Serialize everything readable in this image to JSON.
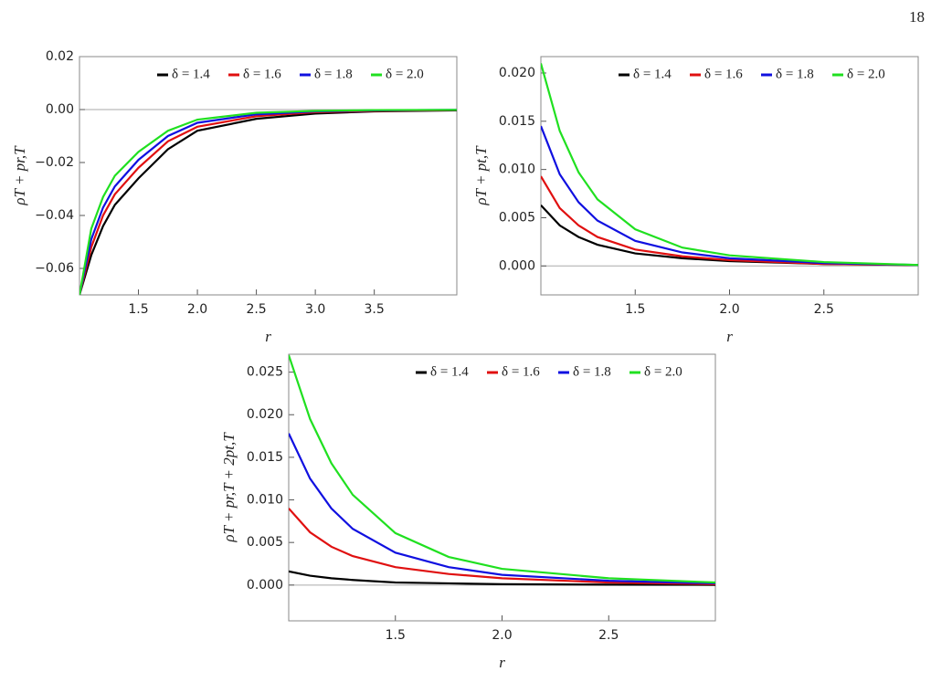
{
  "page_number": "18",
  "chart_data": [
    {
      "type": "line",
      "xlabel": "r",
      "ylabel": "ρT + pr,T",
      "legend": "top-right",
      "x": [
        1.0,
        1.1,
        1.2,
        1.3,
        1.5,
        1.75,
        2.0,
        2.5,
        3.0,
        3.5,
        4.2
      ],
      "xlim": [
        1.0,
        4.2
      ],
      "ylim": [
        -0.07,
        0.02
      ],
      "xticks": [
        {
          "value": 1.5,
          "label": "1.5"
        },
        {
          "value": 2.0,
          "label": "2.0"
        },
        {
          "value": 2.5,
          "label": "2.5"
        },
        {
          "value": 3.0,
          "label": "3.0"
        },
        {
          "value": 3.5,
          "label": "3.5"
        }
      ],
      "yticks": [
        {
          "value": -0.06,
          "label": "−0.06"
        },
        {
          "value": -0.04,
          "label": "−0.04"
        },
        {
          "value": -0.02,
          "label": "−0.02"
        },
        {
          "value": 0,
          "label": "0.00"
        },
        {
          "value": 0.02,
          "label": "0.02"
        }
      ],
      "series": [
        {
          "name": "δ = 1.4",
          "color": "#000000",
          "values": [
            -0.07,
            -0.055,
            -0.044,
            -0.036,
            -0.026,
            -0.015,
            -0.008,
            -0.0035,
            -0.0015,
            -0.0007,
            -0.0003
          ]
        },
        {
          "name": "δ = 1.6",
          "color": "#e01010",
          "values": [
            -0.07,
            -0.052,
            -0.04,
            -0.032,
            -0.022,
            -0.012,
            -0.0065,
            -0.0025,
            -0.001,
            -0.0005,
            -0.0002
          ]
        },
        {
          "name": "δ = 1.8",
          "color": "#1010e0",
          "values": [
            -0.07,
            -0.049,
            -0.037,
            -0.029,
            -0.019,
            -0.01,
            -0.005,
            -0.0018,
            -0.0007,
            -0.0003,
            -0.0001
          ]
        },
        {
          "name": "δ = 2.0",
          "color": "#20e020",
          "values": [
            -0.07,
            -0.045,
            -0.033,
            -0.025,
            -0.016,
            -0.008,
            -0.0038,
            -0.0012,
            -0.0005,
            -0.0002,
            -0.0001
          ]
        }
      ]
    },
    {
      "type": "line",
      "xlabel": "r",
      "ylabel": "ρT + pt,T",
      "legend": "top-right",
      "x": [
        1.0,
        1.1,
        1.2,
        1.3,
        1.5,
        1.75,
        2.0,
        2.5,
        3.0
      ],
      "xlim": [
        1.0,
        3.0
      ],
      "ylim": [
        -0.003,
        0.0217
      ],
      "xticks": [
        {
          "value": 1.5,
          "label": "1.5"
        },
        {
          "value": 2.0,
          "label": "2.0"
        },
        {
          "value": 2.5,
          "label": "2.5"
        }
      ],
      "yticks": [
        {
          "value": 0,
          "label": "0.000"
        },
        {
          "value": 0.005,
          "label": "0.005"
        },
        {
          "value": 0.01,
          "label": "0.010"
        },
        {
          "value": 0.015,
          "label": "0.015"
        },
        {
          "value": 0.02,
          "label": "0.020"
        }
      ],
      "series": [
        {
          "name": "δ = 1.4",
          "color": "#000000",
          "values": [
            0.0063,
            0.0042,
            0.003,
            0.0022,
            0.0013,
            0.0008,
            0.0005,
            0.0002,
            0.0001
          ]
        },
        {
          "name": "δ = 1.6",
          "color": "#e01010",
          "values": [
            0.0093,
            0.006,
            0.0042,
            0.003,
            0.0017,
            0.001,
            0.0006,
            0.0002,
            0.0001
          ]
        },
        {
          "name": "δ = 1.8",
          "color": "#1010e0",
          "values": [
            0.0145,
            0.0095,
            0.0066,
            0.0047,
            0.0026,
            0.0014,
            0.0008,
            0.0003,
            0.0001
          ]
        },
        {
          "name": "δ = 2.0",
          "color": "#20e020",
          "values": [
            0.021,
            0.014,
            0.0097,
            0.0069,
            0.0038,
            0.0019,
            0.0011,
            0.0004,
            0.0001
          ]
        }
      ]
    },
    {
      "type": "line",
      "xlabel": "r",
      "ylabel": "ρT + pr,T + 2pt,T",
      "legend": "top-right",
      "x": [
        1.0,
        1.1,
        1.2,
        1.3,
        1.5,
        1.75,
        2.0,
        2.5,
        3.0
      ],
      "xlim": [
        1.0,
        3.0
      ],
      "ylim": [
        -0.0042,
        0.0271
      ],
      "xticks": [
        {
          "value": 1.5,
          "label": "1.5"
        },
        {
          "value": 2.0,
          "label": "2.0"
        },
        {
          "value": 2.5,
          "label": "2.5"
        }
      ],
      "yticks": [
        {
          "value": 0,
          "label": "0.000"
        },
        {
          "value": 0.005,
          "label": "0.005"
        },
        {
          "value": 0.01,
          "label": "0.010"
        },
        {
          "value": 0.015,
          "label": "0.015"
        },
        {
          "value": 0.02,
          "label": "0.020"
        },
        {
          "value": 0.025,
          "label": "0.025"
        }
      ],
      "series": [
        {
          "name": "δ = 1.4",
          "color": "#000000",
          "values": [
            0.0016,
            0.0011,
            0.0008,
            0.0006,
            0.0003,
            0.0002,
            0.0001,
            5e-05,
            2e-05
          ]
        },
        {
          "name": "δ = 1.6",
          "color": "#e01010",
          "values": [
            0.009,
            0.0062,
            0.0045,
            0.0034,
            0.0021,
            0.0013,
            0.0008,
            0.0003,
            0.0001
          ]
        },
        {
          "name": "δ = 1.8",
          "color": "#1010e0",
          "values": [
            0.0178,
            0.0125,
            0.009,
            0.0066,
            0.0038,
            0.0021,
            0.0012,
            0.0005,
            0.0002
          ]
        },
        {
          "name": "δ = 2.0",
          "color": "#20e020",
          "values": [
            0.027,
            0.0195,
            0.0143,
            0.0106,
            0.0061,
            0.0033,
            0.0019,
            0.0008,
            0.0003
          ]
        }
      ]
    }
  ]
}
